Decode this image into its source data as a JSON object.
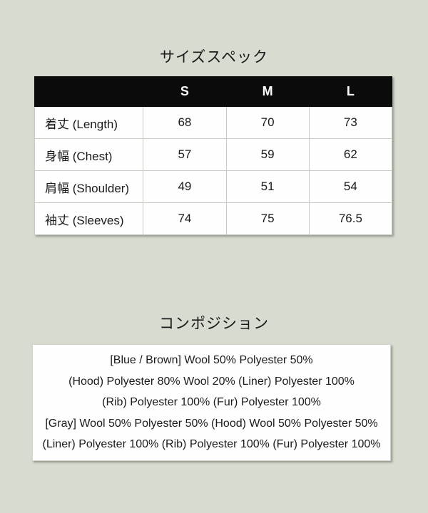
{
  "page": {
    "background_color": "#d8dcd0"
  },
  "size_section": {
    "title": "サイズスペック",
    "table": {
      "header_bg": "#0b0b0b",
      "header_text_color": "#ffffff",
      "columns": [
        "S",
        "M",
        "L"
      ],
      "rows": [
        {
          "label": "着丈 (Length)",
          "values": [
            "68",
            "70",
            "73"
          ]
        },
        {
          "label": "身幅 (Chest)",
          "values": [
            "57",
            "59",
            "62"
          ]
        },
        {
          "label": "肩幅 (Shoulder)",
          "values": [
            "49",
            "51",
            "54"
          ]
        },
        {
          "label": "袖丈 (Sleeves)",
          "values": [
            "74",
            "75",
            "76.5"
          ]
        }
      ]
    }
  },
  "composition_section": {
    "title": "コンポジション",
    "lines": [
      "[Blue / Brown] Wool 50% Polyester 50%",
      "(Hood) Polyester 80% Wool 20% (Liner) Polyester 100%",
      "(Rib) Polyester 100% (Fur) Polyester 100%",
      "[Gray] Wool 50% Polyester 50% (Hood) Wool 50% Polyester 50%",
      "(Liner) Polyester 100% (Rib) Polyester 100% (Fur) Polyester 100%"
    ]
  }
}
